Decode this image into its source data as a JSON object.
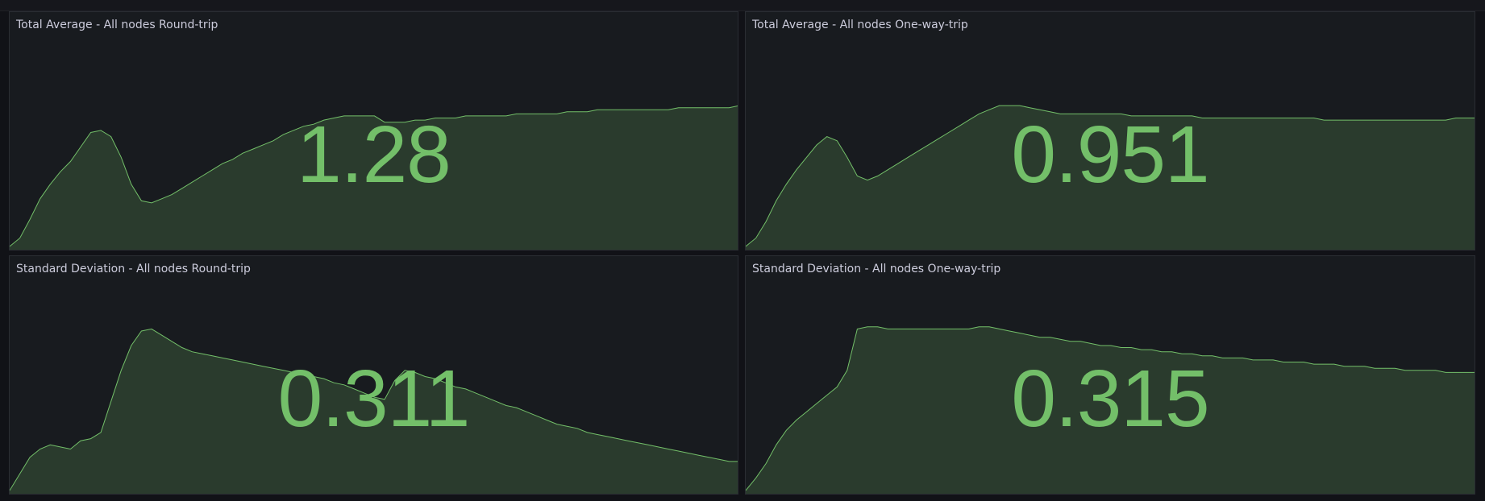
{
  "theme": {
    "value_color": "#73bf69",
    "fill_color": "#73bf69",
    "panel_bg": "#181b1f"
  },
  "panels": [
    {
      "title": "Total Average - All nodes Round-trip",
      "value": "1.28",
      "sparkline": [
        0.02,
        0.06,
        0.15,
        0.25,
        0.32,
        0.38,
        0.43,
        0.5,
        0.57,
        0.58,
        0.55,
        0.45,
        0.32,
        0.24,
        0.23,
        0.25,
        0.27,
        0.3,
        0.33,
        0.36,
        0.39,
        0.42,
        0.44,
        0.47,
        0.49,
        0.51,
        0.53,
        0.56,
        0.58,
        0.6,
        0.61,
        0.63,
        0.64,
        0.65,
        0.65,
        0.65,
        0.65,
        0.62,
        0.62,
        0.62,
        0.63,
        0.63,
        0.64,
        0.64,
        0.64,
        0.65,
        0.65,
        0.65,
        0.65,
        0.65,
        0.66,
        0.66,
        0.66,
        0.66,
        0.66,
        0.67,
        0.67,
        0.67,
        0.68,
        0.68,
        0.68,
        0.68,
        0.68,
        0.68,
        0.68,
        0.68,
        0.69,
        0.69,
        0.69,
        0.69,
        0.69,
        0.69,
        0.7
      ]
    },
    {
      "title": "Total Average - All nodes One-way-trip",
      "value": "0.951",
      "sparkline": [
        0.02,
        0.06,
        0.14,
        0.24,
        0.32,
        0.39,
        0.45,
        0.51,
        0.55,
        0.53,
        0.45,
        0.36,
        0.34,
        0.36,
        0.39,
        0.42,
        0.45,
        0.48,
        0.51,
        0.54,
        0.57,
        0.6,
        0.63,
        0.66,
        0.68,
        0.7,
        0.7,
        0.7,
        0.69,
        0.68,
        0.67,
        0.66,
        0.66,
        0.66,
        0.66,
        0.66,
        0.66,
        0.66,
        0.65,
        0.65,
        0.65,
        0.65,
        0.65,
        0.65,
        0.65,
        0.64,
        0.64,
        0.64,
        0.64,
        0.64,
        0.64,
        0.64,
        0.64,
        0.64,
        0.64,
        0.64,
        0.64,
        0.63,
        0.63,
        0.63,
        0.63,
        0.63,
        0.63,
        0.63,
        0.63,
        0.63,
        0.63,
        0.63,
        0.63,
        0.63,
        0.64,
        0.64,
        0.64
      ]
    },
    {
      "title": "Standard Deviation - All nodes Round-trip",
      "value": "0.311",
      "sparkline": [
        0.02,
        0.1,
        0.18,
        0.22,
        0.24,
        0.23,
        0.22,
        0.26,
        0.27,
        0.3,
        0.45,
        0.6,
        0.72,
        0.79,
        0.8,
        0.77,
        0.74,
        0.71,
        0.69,
        0.68,
        0.67,
        0.66,
        0.65,
        0.64,
        0.63,
        0.62,
        0.61,
        0.6,
        0.59,
        0.58,
        0.57,
        0.56,
        0.54,
        0.53,
        0.51,
        0.49,
        0.47,
        0.46,
        0.55,
        0.6,
        0.59,
        0.57,
        0.56,
        0.54,
        0.52,
        0.51,
        0.49,
        0.47,
        0.45,
        0.43,
        0.42,
        0.4,
        0.38,
        0.36,
        0.34,
        0.33,
        0.32,
        0.3,
        0.29,
        0.28,
        0.27,
        0.26,
        0.25,
        0.24,
        0.23,
        0.22,
        0.21,
        0.2,
        0.19,
        0.18,
        0.17,
        0.16,
        0.16
      ]
    },
    {
      "title": "Standard Deviation - All nodes One-way-trip",
      "value": "0.315",
      "sparkline": [
        0.02,
        0.08,
        0.15,
        0.24,
        0.31,
        0.36,
        0.4,
        0.44,
        0.48,
        0.52,
        0.6,
        0.8,
        0.81,
        0.81,
        0.8,
        0.8,
        0.8,
        0.8,
        0.8,
        0.8,
        0.8,
        0.8,
        0.8,
        0.81,
        0.81,
        0.8,
        0.79,
        0.78,
        0.77,
        0.76,
        0.76,
        0.75,
        0.74,
        0.74,
        0.73,
        0.72,
        0.72,
        0.71,
        0.71,
        0.7,
        0.7,
        0.69,
        0.69,
        0.68,
        0.68,
        0.67,
        0.67,
        0.66,
        0.66,
        0.66,
        0.65,
        0.65,
        0.65,
        0.64,
        0.64,
        0.64,
        0.63,
        0.63,
        0.63,
        0.62,
        0.62,
        0.62,
        0.61,
        0.61,
        0.61,
        0.6,
        0.6,
        0.6,
        0.6,
        0.59,
        0.59,
        0.59,
        0.59
      ]
    }
  ]
}
